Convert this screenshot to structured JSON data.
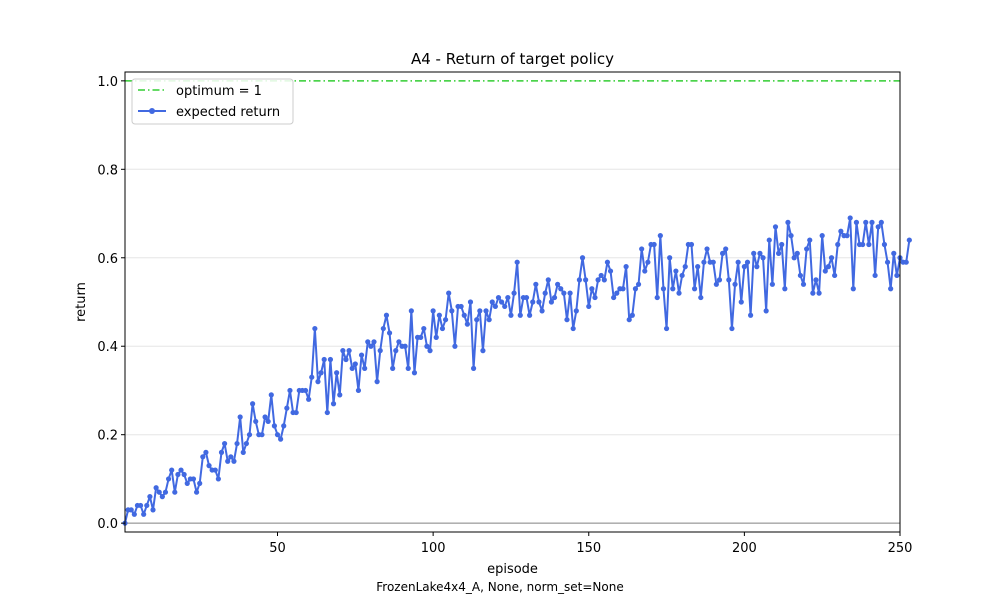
{
  "chart_data": {
    "type": "line",
    "title": "A4 - Return of target policy",
    "xlabel": "episode",
    "ylabel": "return",
    "caption": "FrozenLake4x4_A, None, norm_set=None",
    "xlim": [
      1,
      250
    ],
    "ylim": [
      -0.02,
      1.02
    ],
    "x_ticks": [
      50,
      100,
      150,
      200,
      250
    ],
    "y_ticks": [
      0.0,
      0.2,
      0.4,
      0.6,
      0.8,
      1.0
    ],
    "y_tick_labels": [
      "0.0",
      "0.2",
      "0.4",
      "0.6",
      "0.8",
      "1.0"
    ],
    "grid": "horizontal",
    "legend_position": "top-left",
    "colors": {
      "series": "#4169e1",
      "optimum": "#32cd32",
      "baseline": "#808080",
      "grid": "#e6e6e6"
    },
    "optimum": {
      "name": "optimum = 1",
      "value": 1.0,
      "style": "dash-dot"
    },
    "baseline": 0.0,
    "series": [
      {
        "name": "expected return",
        "x_start": 1,
        "values": [
          0.0,
          0.03,
          0.03,
          0.02,
          0.04,
          0.04,
          0.02,
          0.04,
          0.06,
          0.03,
          0.08,
          0.07,
          0.06,
          0.07,
          0.1,
          0.12,
          0.07,
          0.11,
          0.12,
          0.11,
          0.09,
          0.1,
          0.1,
          0.07,
          0.09,
          0.15,
          0.16,
          0.13,
          0.12,
          0.12,
          0.1,
          0.16,
          0.18,
          0.14,
          0.15,
          0.14,
          0.18,
          0.24,
          0.16,
          0.18,
          0.2,
          0.27,
          0.23,
          0.2,
          0.2,
          0.24,
          0.23,
          0.29,
          0.22,
          0.2,
          0.19,
          0.22,
          0.26,
          0.3,
          0.25,
          0.25,
          0.3,
          0.3,
          0.3,
          0.28,
          0.33,
          0.44,
          0.32,
          0.34,
          0.37,
          0.25,
          0.37,
          0.27,
          0.34,
          0.29,
          0.39,
          0.37,
          0.39,
          0.35,
          0.36,
          0.3,
          0.38,
          0.35,
          0.41,
          0.4,
          0.41,
          0.32,
          0.39,
          0.44,
          0.47,
          0.43,
          0.35,
          0.39,
          0.41,
          0.4,
          0.4,
          0.35,
          0.48,
          0.34,
          0.42,
          0.42,
          0.44,
          0.4,
          0.39,
          0.48,
          0.42,
          0.47,
          0.44,
          0.46,
          0.52,
          0.48,
          0.4,
          0.49,
          0.49,
          0.47,
          0.45,
          0.5,
          0.35,
          0.46,
          0.48,
          0.39,
          0.48,
          0.46,
          0.5,
          0.49,
          0.51,
          0.5,
          0.49,
          0.51,
          0.47,
          0.52,
          0.59,
          0.47,
          0.51,
          0.51,
          0.47,
          0.5,
          0.54,
          0.5,
          0.48,
          0.52,
          0.55,
          0.5,
          0.51,
          0.54,
          0.53,
          0.52,
          0.46,
          0.52,
          0.44,
          0.48,
          0.55,
          0.6,
          0.55,
          0.49,
          0.53,
          0.51,
          0.55,
          0.56,
          0.55,
          0.59,
          0.57,
          0.51,
          0.52,
          0.53,
          0.53,
          0.58,
          0.46,
          0.47,
          0.53,
          0.54,
          0.62,
          0.57,
          0.59,
          0.63,
          0.63,
          0.51,
          0.65,
          0.53,
          0.44,
          0.6,
          0.53,
          0.57,
          0.52,
          0.56,
          0.58,
          0.63,
          0.63,
          0.53,
          0.58,
          0.51,
          0.59,
          0.62,
          0.59,
          0.59,
          0.54,
          0.55,
          0.61,
          0.62,
          0.55,
          0.44,
          0.54,
          0.59,
          0.5,
          0.58,
          0.59,
          0.47,
          0.61,
          0.58,
          0.61,
          0.6,
          0.48,
          0.64,
          0.54,
          0.67,
          0.61,
          0.63,
          0.53,
          0.68,
          0.65,
          0.6,
          0.61,
          0.56,
          0.54,
          0.62,
          0.64,
          0.52,
          0.55,
          0.52,
          0.65,
          0.57,
          0.58,
          0.6,
          0.56,
          0.63,
          0.66,
          0.65,
          0.65,
          0.69,
          0.53,
          0.68,
          0.63,
          0.63,
          0.68,
          0.63,
          0.68,
          0.56,
          0.67,
          0.68,
          0.63,
          0.59,
          0.53,
          0.61,
          0.56,
          0.6,
          0.59,
          0.59,
          0.64
        ]
      }
    ]
  }
}
